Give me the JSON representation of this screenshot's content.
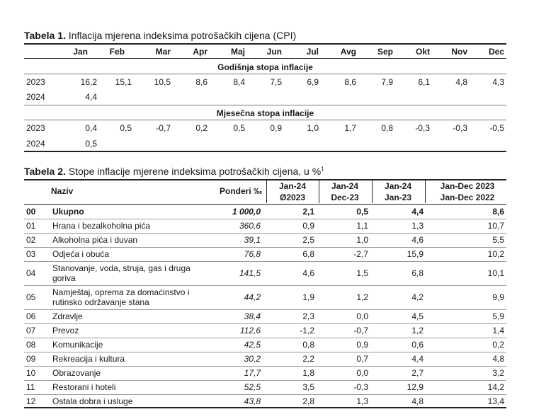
{
  "table1": {
    "caption_bold": "Tabela 1.",
    "caption_rest": " Inflacija mjerena indeksima potrošačkih cijena (CPI)",
    "months": [
      "Jan",
      "Feb",
      "Mar",
      "Apr",
      "Maj",
      "Jun",
      "Jul",
      "Avg",
      "Sep",
      "Okt",
      "Nov",
      "Dec"
    ],
    "annual_title": "Godišnja stopa inflacije",
    "monthly_title": "Mjesečna stopa inflacije",
    "annual_rows": [
      {
        "year": "2023",
        "values": [
          "16,2",
          "15,1",
          "10,5",
          "8,6",
          "8,4",
          "7,5",
          "6,9",
          "8,6",
          "7,9",
          "6,1",
          "4,8",
          "4,3"
        ]
      },
      {
        "year": "2024",
        "values": [
          "4,4",
          "",
          "",
          "",
          "",
          "",
          "",
          "",
          "",
          "",
          "",
          ""
        ]
      }
    ],
    "monthly_rows": [
      {
        "year": "2023",
        "values": [
          "0,4",
          "0,5",
          "-0,7",
          "0,2",
          "0,5",
          "0,9",
          "1,0",
          "1,7",
          "0,8",
          "-0,3",
          "-0,3",
          "-0,5"
        ]
      },
      {
        "year": "2024",
        "values": [
          "0,5",
          "",
          "",
          "",
          "",
          "",
          "",
          "",
          "",
          "",
          "",
          ""
        ]
      }
    ]
  },
  "table2": {
    "caption_bold": "Tabela 2.",
    "caption_rest": " Stope inflacije mjerene indeksima potrošačkih cijena, u %",
    "caption_sup": "1",
    "headers": {
      "naziv": "Naziv",
      "ponderi": "Ponderi ‰",
      "c1_top": "Jan-24",
      "c1_bot": "Ø2023",
      "c2_top": "Jan-24",
      "c2_bot": "Dec-23",
      "c3_top": "Jan-24",
      "c3_bot": "Jan-23",
      "c4_top": "Jan-Dec 2023",
      "c4_bot": "Jan-Dec 2022"
    },
    "rows": [
      {
        "code": "00",
        "name": [
          "Ukupno"
        ],
        "weight": "1 000,0",
        "v1": "2,1",
        "v2": "0,5",
        "v3": "4,4",
        "v4": "8,6",
        "bold": true
      },
      {
        "code": "01",
        "name": [
          "Hrana i bezalkoholna pića"
        ],
        "weight": "360,6",
        "v1": "0,9",
        "v2": "1,1",
        "v3": "1,3",
        "v4": "10,7"
      },
      {
        "code": "02",
        "name": [
          "Alkoholna pića i duvan"
        ],
        "weight": "39,1",
        "v1": "2,5",
        "v2": "1,0",
        "v3": "4,6",
        "v4": "5,5"
      },
      {
        "code": "03",
        "name": [
          "Odjeća i obuća"
        ],
        "weight": "76,8",
        "v1": "6,8",
        "v2": "-2,7",
        "v3": "15,9",
        "v4": "10,2"
      },
      {
        "code": "04",
        "name": [
          "Stanovanje, voda, struja, gas i druga",
          "goriva"
        ],
        "weight": "141,5",
        "v1": "4,6",
        "v2": "1,5",
        "v3": "6,8",
        "v4": "10,1"
      },
      {
        "code": "05",
        "name": [
          "Namještaj, oprema za domaćinstvo i",
          "rutinsko održavanje stana"
        ],
        "weight": "44,2",
        "v1": "1,9",
        "v2": "1,2",
        "v3": "4,2",
        "v4": "9,9"
      },
      {
        "code": "06",
        "name": [
          "Zdravlje"
        ],
        "weight": "38,4",
        "v1": "2,3",
        "v2": "0,0",
        "v3": "4,5",
        "v4": "5,9"
      },
      {
        "code": "07",
        "name": [
          "Prevoz"
        ],
        "weight": "112,6",
        "v1": "-1,2",
        "v2": "-0,7",
        "v3": "1,2",
        "v4": "1,4"
      },
      {
        "code": "08",
        "name": [
          "Komunikacije"
        ],
        "weight": "42,5",
        "v1": "0,8",
        "v2": "0,9",
        "v3": "0,6",
        "v4": "0,2"
      },
      {
        "code": "09",
        "name": [
          "Rekreacija i kultura"
        ],
        "weight": "30,2",
        "v1": "2,2",
        "v2": "0,7",
        "v3": "4,4",
        "v4": "4,8"
      },
      {
        "code": "10",
        "name": [
          "Obrazovanje"
        ],
        "weight": "17,7",
        "v1": "1,8",
        "v2": "0,0",
        "v3": "2,7",
        "v4": "3,2"
      },
      {
        "code": "11",
        "name": [
          "Restorani i hoteli"
        ],
        "weight": "52,5",
        "v1": "3,5",
        "v2": "-0,3",
        "v3": "12,9",
        "v4": "14,2"
      },
      {
        "code": "12",
        "name": [
          "Ostala dobra i usluge"
        ],
        "weight": "43,8",
        "v1": "2,8",
        "v2": "1,3",
        "v3": "4,8",
        "v4": "13,4"
      }
    ]
  }
}
